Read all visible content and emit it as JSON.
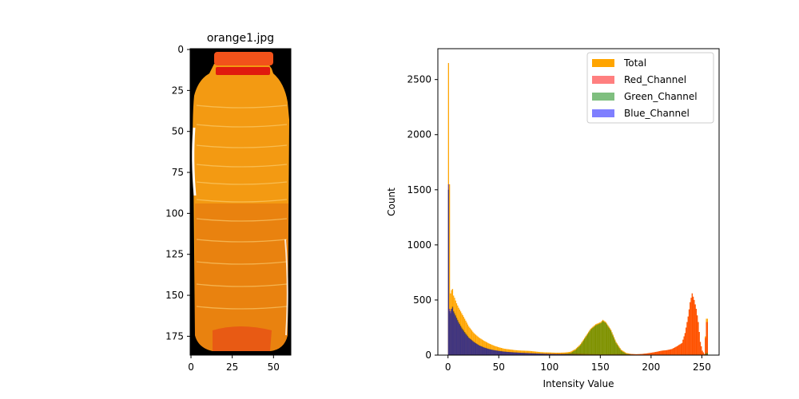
{
  "image_panel": {
    "title": "orange1.jpg",
    "xticks": [
      0,
      25,
      50
    ],
    "yticks": [
      0,
      25,
      50,
      75,
      100,
      125,
      150,
      175
    ],
    "xlim": [
      -0.5,
      60.5
    ],
    "ylim": [
      186.5,
      -0.5
    ],
    "colors": {
      "background": "#000000",
      "bottle_body": "#f39a12",
      "bottle_dark": "#e0700c",
      "cap": "#f2521a",
      "cap_ring": "#e01a0e",
      "base": "#e85a14",
      "highlight": "#ffffff"
    }
  },
  "chart_data": {
    "type": "bar",
    "title": "",
    "xlabel": "Intensity Value",
    "ylabel": "Count",
    "xlim": [
      -10,
      267
    ],
    "ylim": [
      0,
      2780
    ],
    "xticks": [
      0,
      50,
      100,
      150,
      200,
      250
    ],
    "yticks": [
      0,
      500,
      1000,
      1500,
      2000,
      2500
    ],
    "legend_position": "upper right",
    "series": [
      {
        "name": "Total",
        "color": "#ffa500",
        "alpha": 1.0,
        "points": [
          [
            0,
            2650
          ],
          [
            1,
            1550
          ],
          [
            2,
            560
          ],
          [
            3,
            590
          ],
          [
            4,
            600
          ],
          [
            5,
            540
          ],
          [
            6,
            520
          ],
          [
            8,
            470
          ],
          [
            10,
            430
          ],
          [
            13,
            380
          ],
          [
            16,
            330
          ],
          [
            20,
            260
          ],
          [
            25,
            200
          ],
          [
            30,
            160
          ],
          [
            35,
            130
          ],
          [
            40,
            105
          ],
          [
            45,
            85
          ],
          [
            50,
            70
          ],
          [
            55,
            58
          ],
          [
            60,
            52
          ],
          [
            65,
            46
          ],
          [
            70,
            42
          ],
          [
            75,
            40
          ],
          [
            80,
            38
          ],
          [
            85,
            33
          ],
          [
            90,
            28
          ],
          [
            95,
            25
          ],
          [
            100,
            24
          ],
          [
            105,
            22
          ],
          [
            110,
            22
          ],
          [
            115,
            24
          ],
          [
            120,
            30
          ],
          [
            125,
            55
          ],
          [
            130,
            100
          ],
          [
            135,
            170
          ],
          [
            140,
            240
          ],
          [
            145,
            280
          ],
          [
            150,
            300
          ],
          [
            152,
            320
          ],
          [
            155,
            300
          ],
          [
            160,
            230
          ],
          [
            165,
            120
          ],
          [
            170,
            50
          ],
          [
            175,
            20
          ],
          [
            180,
            10
          ],
          [
            185,
            8
          ],
          [
            190,
            10
          ],
          [
            195,
            15
          ],
          [
            200,
            22
          ],
          [
            205,
            30
          ],
          [
            210,
            40
          ],
          [
            215,
            45
          ],
          [
            220,
            55
          ],
          [
            225,
            80
          ],
          [
            230,
            110
          ],
          [
            233,
            200
          ],
          [
            236,
            350
          ],
          [
            238,
            480
          ],
          [
            240,
            560
          ],
          [
            242,
            500
          ],
          [
            244,
            420
          ],
          [
            246,
            300
          ],
          [
            248,
            120
          ],
          [
            250,
            40
          ],
          [
            252,
            10
          ],
          [
            254,
            330
          ]
        ]
      },
      {
        "name": "Red_Channel",
        "color": "#ff0000",
        "alpha": 0.5,
        "points": [
          [
            0,
            1500
          ],
          [
            1,
            400
          ],
          [
            2,
            380
          ],
          [
            3,
            420
          ],
          [
            4,
            440
          ],
          [
            5,
            400
          ],
          [
            6,
            380
          ],
          [
            8,
            340
          ],
          [
            10,
            300
          ],
          [
            13,
            250
          ],
          [
            16,
            210
          ],
          [
            20,
            160
          ],
          [
            25,
            120
          ],
          [
            30,
            90
          ],
          [
            35,
            70
          ],
          [
            40,
            55
          ],
          [
            45,
            45
          ],
          [
            50,
            38
          ],
          [
            55,
            32
          ],
          [
            60,
            28
          ],
          [
            65,
            25
          ],
          [
            70,
            22
          ],
          [
            75,
            20
          ],
          [
            80,
            18
          ],
          [
            85,
            16
          ],
          [
            90,
            14
          ],
          [
            95,
            13
          ],
          [
            100,
            12
          ],
          [
            105,
            12
          ],
          [
            110,
            12
          ],
          [
            115,
            13
          ],
          [
            120,
            14
          ],
          [
            125,
            15
          ],
          [
            130,
            14
          ],
          [
            135,
            12
          ],
          [
            140,
            10
          ],
          [
            145,
            9
          ],
          [
            150,
            8
          ],
          [
            155,
            8
          ],
          [
            160,
            9
          ],
          [
            165,
            10
          ],
          [
            170,
            10
          ],
          [
            175,
            10
          ],
          [
            180,
            10
          ],
          [
            185,
            8
          ],
          [
            190,
            10
          ],
          [
            195,
            15
          ],
          [
            200,
            22
          ],
          [
            205,
            30
          ],
          [
            210,
            40
          ],
          [
            215,
            45
          ],
          [
            220,
            55
          ],
          [
            225,
            80
          ],
          [
            230,
            110
          ],
          [
            233,
            200
          ],
          [
            236,
            350
          ],
          [
            238,
            480
          ],
          [
            240,
            560
          ],
          [
            242,
            500
          ],
          [
            244,
            420
          ],
          [
            246,
            300
          ],
          [
            248,
            120
          ],
          [
            250,
            40
          ],
          [
            252,
            10
          ],
          [
            254,
            300
          ]
        ]
      },
      {
        "name": "Green_Channel",
        "color": "#008000",
        "alpha": 0.5,
        "points": [
          [
            0,
            1500
          ],
          [
            1,
            400
          ],
          [
            2,
            380
          ],
          [
            3,
            420
          ],
          [
            4,
            440
          ],
          [
            5,
            400
          ],
          [
            6,
            380
          ],
          [
            8,
            340
          ],
          [
            10,
            300
          ],
          [
            13,
            250
          ],
          [
            16,
            210
          ],
          [
            20,
            160
          ],
          [
            25,
            120
          ],
          [
            30,
            90
          ],
          [
            35,
            70
          ],
          [
            40,
            55
          ],
          [
            45,
            45
          ],
          [
            50,
            38
          ],
          [
            55,
            32
          ],
          [
            60,
            28
          ],
          [
            65,
            25
          ],
          [
            70,
            22
          ],
          [
            75,
            20
          ],
          [
            80,
            18
          ],
          [
            85,
            16
          ],
          [
            90,
            14
          ],
          [
            95,
            12
          ],
          [
            100,
            11
          ],
          [
            105,
            10
          ],
          [
            110,
            10
          ],
          [
            115,
            12
          ],
          [
            120,
            18
          ],
          [
            125,
            45
          ],
          [
            130,
            90
          ],
          [
            135,
            160
          ],
          [
            140,
            230
          ],
          [
            145,
            270
          ],
          [
            150,
            290
          ],
          [
            152,
            310
          ],
          [
            155,
            290
          ],
          [
            160,
            220
          ],
          [
            165,
            110
          ],
          [
            170,
            40
          ],
          [
            175,
            12
          ],
          [
            180,
            5
          ],
          [
            185,
            3
          ],
          [
            190,
            2
          ],
          [
            195,
            1
          ],
          [
            200,
            1
          ],
          [
            205,
            0
          ],
          [
            210,
            0
          ],
          [
            215,
            0
          ],
          [
            220,
            0
          ],
          [
            225,
            0
          ],
          [
            230,
            0
          ],
          [
            233,
            0
          ],
          [
            236,
            0
          ],
          [
            238,
            0
          ],
          [
            240,
            0
          ],
          [
            242,
            0
          ],
          [
            244,
            0
          ],
          [
            246,
            0
          ],
          [
            248,
            0
          ],
          [
            250,
            0
          ],
          [
            252,
            0
          ],
          [
            254,
            20
          ]
        ]
      },
      {
        "name": "Blue_Channel",
        "color": "#0000ff",
        "alpha": 0.5,
        "points": [
          [
            0,
            1550
          ],
          [
            1,
            420
          ],
          [
            2,
            400
          ],
          [
            3,
            420
          ],
          [
            4,
            430
          ],
          [
            5,
            390
          ],
          [
            6,
            370
          ],
          [
            8,
            330
          ],
          [
            10,
            290
          ],
          [
            13,
            240
          ],
          [
            16,
            200
          ],
          [
            20,
            155
          ],
          [
            25,
            118
          ],
          [
            30,
            88
          ],
          [
            35,
            68
          ],
          [
            40,
            54
          ],
          [
            45,
            44
          ],
          [
            50,
            37
          ],
          [
            55,
            31
          ],
          [
            60,
            27
          ],
          [
            65,
            24
          ],
          [
            70,
            21
          ],
          [
            75,
            19
          ],
          [
            80,
            17
          ],
          [
            85,
            15
          ],
          [
            90,
            13
          ],
          [
            95,
            11
          ],
          [
            100,
            10
          ],
          [
            105,
            9
          ],
          [
            110,
            8
          ],
          [
            115,
            7
          ],
          [
            120,
            6
          ],
          [
            125,
            5
          ],
          [
            130,
            4
          ],
          [
            135,
            3
          ],
          [
            140,
            3
          ],
          [
            145,
            2
          ],
          [
            150,
            2
          ],
          [
            155,
            2
          ],
          [
            160,
            1
          ],
          [
            165,
            1
          ],
          [
            170,
            1
          ],
          [
            175,
            1
          ],
          [
            180,
            0
          ],
          [
            185,
            0
          ],
          [
            190,
            0
          ],
          [
            195,
            0
          ],
          [
            200,
            0
          ],
          [
            205,
            0
          ],
          [
            210,
            0
          ],
          [
            215,
            0
          ],
          [
            220,
            0
          ],
          [
            225,
            0
          ],
          [
            230,
            0
          ],
          [
            233,
            0
          ],
          [
            236,
            0
          ],
          [
            238,
            0
          ],
          [
            240,
            0
          ],
          [
            242,
            0
          ],
          [
            244,
            0
          ],
          [
            246,
            0
          ],
          [
            248,
            0
          ],
          [
            250,
            0
          ],
          [
            252,
            0
          ],
          [
            254,
            5
          ]
        ]
      }
    ]
  }
}
